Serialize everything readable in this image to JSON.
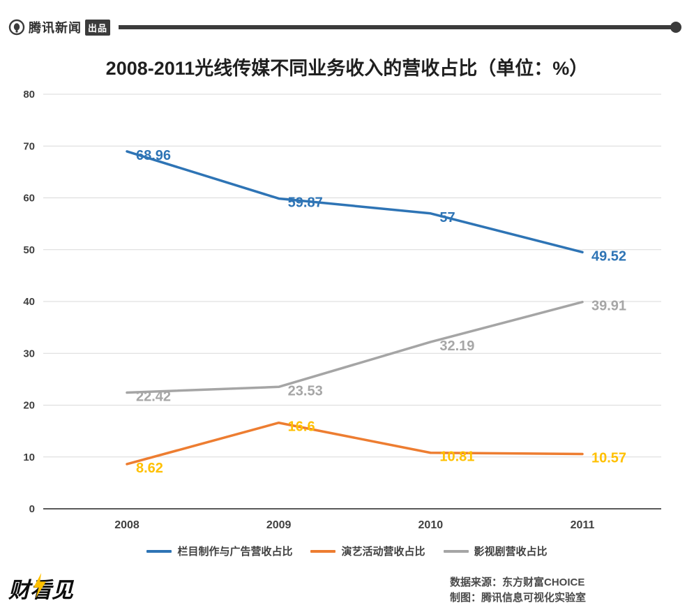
{
  "header": {
    "brand": "腾讯新闻",
    "badge": "出品"
  },
  "chart_data": {
    "type": "line",
    "title": "2008-2011光线传媒不同业务收入的营收占比（单位：%）",
    "categories": [
      "2008",
      "2009",
      "2010",
      "2011"
    ],
    "series": [
      {
        "name": "栏目制作与广告营收占比",
        "values": [
          68.96,
          59.87,
          57,
          49.52
        ],
        "color": "#2E74B5",
        "label_color": "#2E74B5"
      },
      {
        "name": "演艺活动营收占比",
        "values": [
          8.62,
          16.6,
          10.81,
          10.57
        ],
        "color": "#ED7D31",
        "label_color": "#FFC000"
      },
      {
        "name": "影视剧营收占比",
        "values": [
          22.42,
          23.53,
          32.19,
          39.91
        ],
        "color": "#A5A5A5",
        "label_color": "#A6A6A6"
      }
    ],
    "ylim": [
      0,
      80
    ],
    "ytick_step": 10,
    "grid": true,
    "legend_position": "bottom",
    "colors": {
      "grid": "#D9D9D9",
      "axis": "#595959",
      "tick_text": "#404040"
    }
  },
  "footer": {
    "logo": "财看见",
    "source_line1": "数据来源：东方财富CHOICE",
    "source_line2": "制图：腾讯信息可视化实验室"
  }
}
